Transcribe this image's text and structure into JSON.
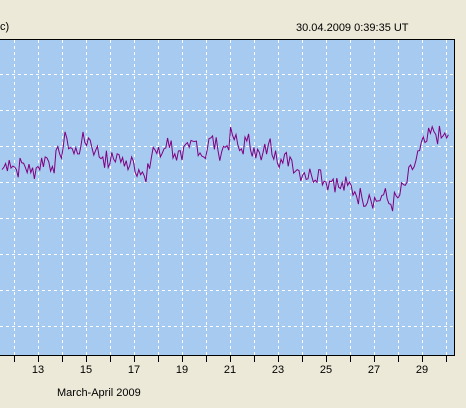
{
  "header": {
    "left_fragment": "c)",
    "timestamp": "30.04.2009 0:39:35 UT"
  },
  "chart_data": {
    "type": "line",
    "xlabel": "March-April 2009",
    "x_tick_labels": [
      "13",
      "15",
      "17",
      "19",
      "21",
      "23",
      "25",
      "27",
      "29"
    ],
    "grid": true,
    "colors": {
      "plot_background": "#a6caf0",
      "grid": "#ffffff",
      "line": "#800080",
      "frame": "#000000",
      "window": "#ece9d8"
    },
    "xlim": [
      11.5,
      30.5
    ],
    "ylim": [
      0,
      10
    ],
    "series": [
      {
        "values": [
          [
            11.5,
            5.9
          ],
          [
            11.8,
            6.2
          ],
          [
            12.1,
            5.9
          ],
          [
            12.4,
            6.1
          ],
          [
            12.7,
            5.8
          ],
          [
            13.0,
            6.0
          ],
          [
            13.3,
            6.3
          ],
          [
            13.6,
            6.0
          ],
          [
            13.9,
            6.4
          ],
          [
            14.2,
            6.9
          ],
          [
            14.5,
            6.4
          ],
          [
            14.8,
            6.7
          ],
          [
            15.1,
            6.9
          ],
          [
            15.4,
            6.5
          ],
          [
            15.7,
            6.3
          ],
          [
            16.0,
            6.1
          ],
          [
            16.3,
            6.4
          ],
          [
            16.6,
            6.0
          ],
          [
            16.9,
            6.3
          ],
          [
            17.2,
            5.9
          ],
          [
            17.5,
            5.5
          ],
          [
            17.8,
            6.6
          ],
          [
            18.1,
            6.3
          ],
          [
            18.4,
            6.9
          ],
          [
            18.7,
            6.4
          ],
          [
            19.0,
            6.2
          ],
          [
            19.3,
            6.6
          ],
          [
            19.6,
            6.8
          ],
          [
            19.9,
            6.3
          ],
          [
            20.2,
            6.9
          ],
          [
            20.5,
            6.5
          ],
          [
            20.8,
            6.6
          ],
          [
            21.1,
            7.0
          ],
          [
            21.4,
            6.5
          ],
          [
            21.7,
            6.8
          ],
          [
            22.0,
            6.6
          ],
          [
            22.3,
            6.2
          ],
          [
            22.6,
            6.7
          ],
          [
            22.9,
            6.5
          ],
          [
            23.2,
            6.1
          ],
          [
            23.5,
            6.3
          ],
          [
            23.8,
            5.9
          ],
          [
            24.1,
            5.8
          ],
          [
            24.4,
            5.7
          ],
          [
            24.7,
            5.9
          ],
          [
            25.0,
            5.5
          ],
          [
            25.3,
            5.6
          ],
          [
            25.6,
            5.3
          ],
          [
            25.9,
            5.4
          ],
          [
            26.2,
            5.2
          ],
          [
            26.5,
            5.0
          ],
          [
            26.8,
            5.1
          ],
          [
            27.1,
            4.9
          ],
          [
            27.4,
            5.1
          ],
          [
            27.7,
            4.8
          ],
          [
            28.0,
            5.0
          ],
          [
            28.3,
            5.4
          ],
          [
            28.6,
            5.9
          ],
          [
            28.9,
            6.5
          ],
          [
            29.2,
            6.8
          ],
          [
            29.5,
            7.1
          ],
          [
            29.8,
            6.9
          ],
          [
            30.1,
            7.0
          ]
        ]
      }
    ]
  }
}
